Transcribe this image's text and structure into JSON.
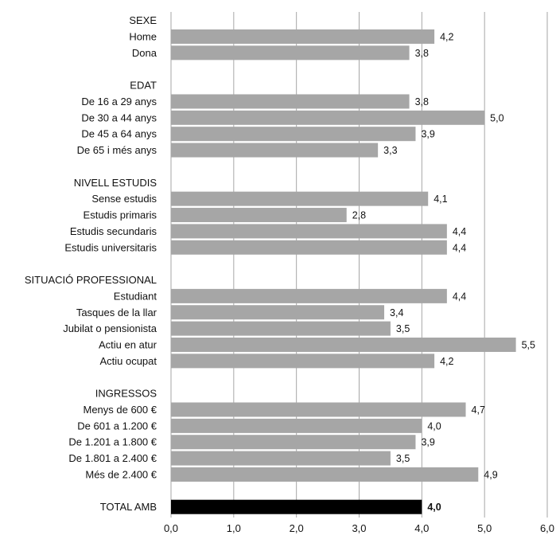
{
  "chart_data": {
    "type": "bar",
    "orientation": "horizontal",
    "xlim": [
      0,
      6
    ],
    "xticks": [
      "0,0",
      "1,0",
      "2,0",
      "3,0",
      "4,0",
      "5,0",
      "6,0"
    ],
    "grid": true,
    "bar_color": "#a6a6a6",
    "total_bar_color": "#000000",
    "rows": [
      {
        "kind": "header",
        "label": "SEXE"
      },
      {
        "kind": "bar",
        "label": "Home",
        "value": 4.2,
        "value_label": "4,2"
      },
      {
        "kind": "bar",
        "label": "Dona",
        "value": 3.8,
        "value_label": "3,8"
      },
      {
        "kind": "blank"
      },
      {
        "kind": "header",
        "label": "EDAT"
      },
      {
        "kind": "bar",
        "label": "De 16 a 29 anys",
        "value": 3.8,
        "value_label": "3,8"
      },
      {
        "kind": "bar",
        "label": "De 30 a 44 anys",
        "value": 5.0,
        "value_label": "5,0"
      },
      {
        "kind": "bar",
        "label": "De 45 a 64 anys",
        "value": 3.9,
        "value_label": "3,9"
      },
      {
        "kind": "bar",
        "label": "De 65 i més anys",
        "value": 3.3,
        "value_label": "3,3"
      },
      {
        "kind": "blank"
      },
      {
        "kind": "header",
        "label": "NIVELL ESTUDIS"
      },
      {
        "kind": "bar",
        "label": "Sense estudis",
        "value": 4.1,
        "value_label": "4,1"
      },
      {
        "kind": "bar",
        "label": "Estudis primaris",
        "value": 2.8,
        "value_label": "2,8"
      },
      {
        "kind": "bar",
        "label": "Estudis secundaris",
        "value": 4.4,
        "value_label": "4,4"
      },
      {
        "kind": "bar",
        "label": "Estudis universitaris",
        "value": 4.4,
        "value_label": "4,4"
      },
      {
        "kind": "blank"
      },
      {
        "kind": "header",
        "label": "SITUACIÓ PROFESSIONAL"
      },
      {
        "kind": "bar",
        "label": "Estudiant",
        "value": 4.4,
        "value_label": "4,4"
      },
      {
        "kind": "bar",
        "label": "Tasques de la llar",
        "value": 3.4,
        "value_label": "3,4"
      },
      {
        "kind": "bar",
        "label": "Jubilat o pensionista",
        "value": 3.5,
        "value_label": "3,5"
      },
      {
        "kind": "bar",
        "label": "Actiu en atur",
        "value": 5.5,
        "value_label": "5,5"
      },
      {
        "kind": "bar",
        "label": "Actiu ocupat",
        "value": 4.2,
        "value_label": "4,2"
      },
      {
        "kind": "blank"
      },
      {
        "kind": "header",
        "label": "INGRESSOS"
      },
      {
        "kind": "bar",
        "label": "Menys de  600 €",
        "value": 4.7,
        "value_label": "4,7"
      },
      {
        "kind": "bar",
        "label": "De 601 a 1.200 €",
        "value": 4.0,
        "value_label": "4,0"
      },
      {
        "kind": "bar",
        "label": "De 1.201 a 1.800 €",
        "value": 3.9,
        "value_label": "3,9"
      },
      {
        "kind": "bar",
        "label": "De 1.801 a 2.400 €",
        "value": 3.5,
        "value_label": "3,5"
      },
      {
        "kind": "bar",
        "label": "Més de 2.400 €",
        "value": 4.9,
        "value_label": "4,9"
      },
      {
        "kind": "blank"
      },
      {
        "kind": "total",
        "label": "TOTAL AMB",
        "value": 4.0,
        "value_label": "4,0"
      }
    ]
  }
}
